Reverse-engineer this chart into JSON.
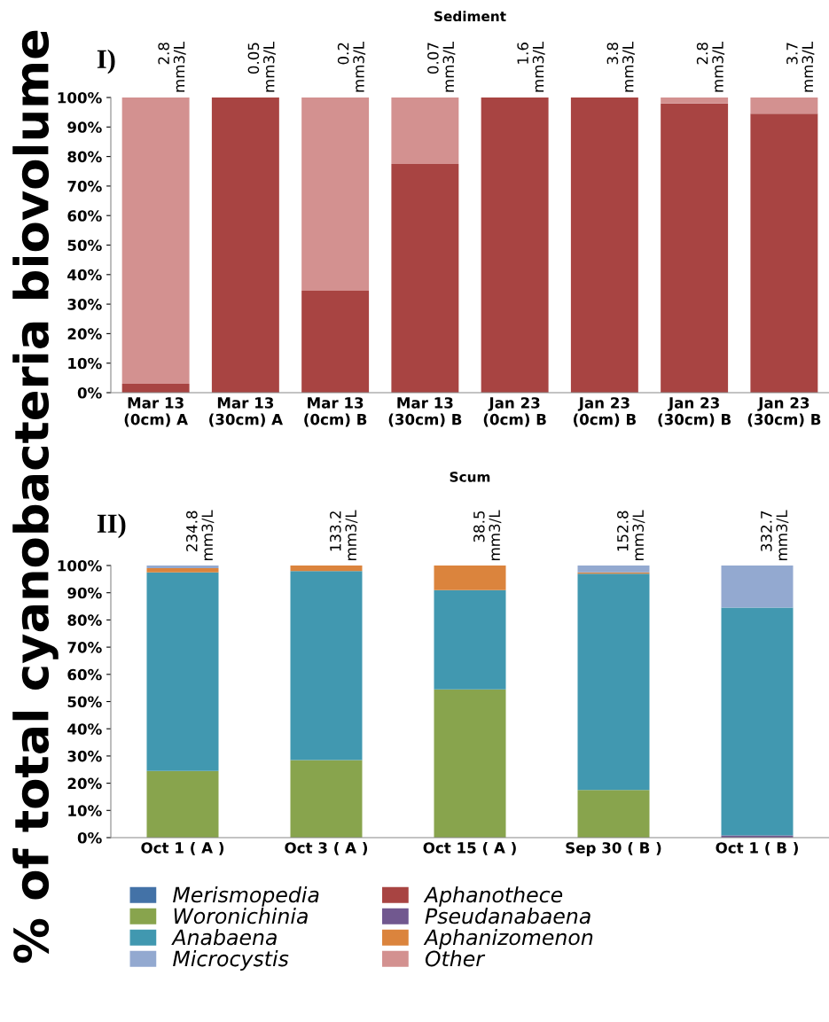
{
  "chart_data": [
    {
      "type": "bar",
      "title": "Sediment",
      "ylabel": "% of total cyanobacteria biovolume",
      "stacked": true,
      "legend": false,
      "grid": false,
      "categories": [
        "Mar 13\n(0cm) A",
        "Mar 13\n(30cm) A",
        "Mar 13\n(0cm) B",
        "Mar 13\n(30cm) B",
        "Jan 23\n(0cm) B",
        "Jan 23\n(0cm) B",
        "Jan 23\n(30cm) B",
        "Jan 23\n(30cm) B"
      ],
      "series": [
        {
          "color": "#a84442",
          "values": [
            3,
            100,
            34.5,
            77.5,
            100,
            100,
            98,
            94.5
          ]
        },
        {
          "color": "#d39190",
          "values": [
            97,
            0,
            65.5,
            22.5,
            0,
            0,
            2,
            5.5
          ]
        }
      ],
      "totals": [
        "2.8 mm3/L",
        "0.05 mm3/L",
        "0.2 mm3/L",
        "0.07 mm3/L",
        "1.6 mm3/L",
        "3.8 mm3/L",
        "2.8 mm3/L",
        "3.7 mm3/L"
      ],
      "annotations": [
        "I)"
      ],
      "ylim": [
        0,
        100
      ],
      "yticks": [
        {
          "value": 0,
          "label": "0%"
        },
        {
          "value": 10,
          "label": "10%"
        },
        {
          "value": 20,
          "label": "20%"
        },
        {
          "value": 30,
          "label": "30%"
        },
        {
          "value": 40,
          "label": "40%"
        },
        {
          "value": 50,
          "label": "50%"
        },
        {
          "value": 60,
          "label": "60%"
        },
        {
          "value": 70,
          "label": "70%"
        },
        {
          "value": 80,
          "label": "80%"
        },
        {
          "value": 90,
          "label": "90%"
        },
        {
          "value": 100,
          "label": "100%"
        }
      ]
    },
    {
      "type": "bar",
      "title": "Scum",
      "stacked": true,
      "legend": "bottom",
      "grid": false,
      "categories": [
        "Oct 1 ( A )",
        "Oct 3 ( A )",
        "Oct 15 ( A )",
        "Sep 30 ( B )",
        "Oct 1 ( B )"
      ],
      "series": [
        {
          "name": "Merismopedia",
          "color": "#4372a7",
          "values": [
            0,
            0,
            0,
            0,
            0
          ]
        },
        {
          "name": "Aphanothece",
          "color": "#a84442",
          "values": [
            0,
            0,
            0,
            0,
            0
          ]
        },
        {
          "name": "Woronichinia",
          "color": "#88a44d",
          "values": [
            24.5,
            28.5,
            54.5,
            17.5,
            0
          ]
        },
        {
          "name": "Pseudanabaena",
          "color": "#71588f",
          "values": [
            0,
            0,
            0,
            0,
            0.8
          ]
        },
        {
          "name": "Anabaena",
          "color": "#4198b0",
          "values": [
            73,
            69.5,
            36.5,
            79.5,
            83.7
          ]
        },
        {
          "name": "Aphanizomenon",
          "color": "#db843d",
          "values": [
            1.5,
            2,
            9,
            0.5,
            0
          ]
        },
        {
          "name": "Microcystis",
          "color": "#93a9d0",
          "values": [
            1,
            0,
            0,
            2.5,
            15.5
          ]
        },
        {
          "name": "Other",
          "color": "#d39190",
          "values": [
            0,
            0,
            0,
            0,
            0
          ]
        }
      ],
      "totals": [
        "234.8 mm3/L",
        "133.2 mm3/L",
        "38.5 mm3/L",
        "152.8 mm3/L",
        "332.7 mm3/L"
      ],
      "annotations": [
        "II)"
      ],
      "ylim": [
        0,
        100
      ],
      "yticks": [
        {
          "value": 0,
          "label": "0%"
        },
        {
          "value": 10,
          "label": "10%"
        },
        {
          "value": 20,
          "label": "20%"
        },
        {
          "value": 30,
          "label": "30%"
        },
        {
          "value": 40,
          "label": "40%"
        },
        {
          "value": 50,
          "label": "50%"
        },
        {
          "value": 60,
          "label": "60%"
        },
        {
          "value": 70,
          "label": "70%"
        },
        {
          "value": 80,
          "label": "80%"
        },
        {
          "value": 90,
          "label": "90%"
        },
        {
          "value": 100,
          "label": "100%"
        }
      ]
    }
  ]
}
